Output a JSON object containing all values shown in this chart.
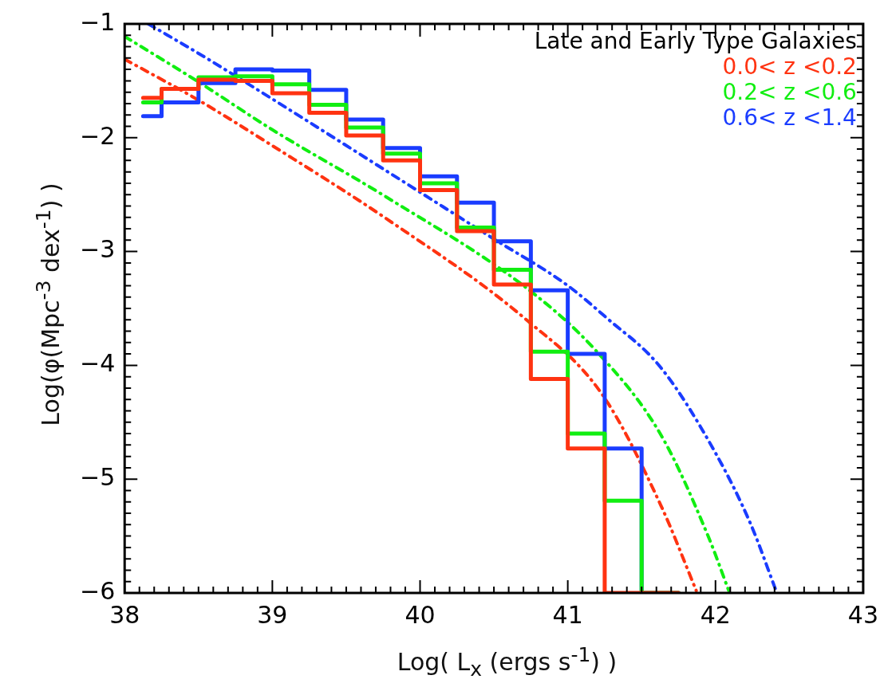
{
  "chart_data": {
    "type": "histogram",
    "xlabel": "Log( L$_{x}$ (ergs s$^{-1}$) )",
    "ylabel": "Log(φ(Mpc$^{-3}$ dex$^{-1}$) )",
    "legend_title": "Late and Early Type Galaxies",
    "legend": "top right",
    "grid": false,
    "bins": [
      38.125,
      38.25,
      38.5,
      38.75,
      39,
      39.25,
      39.5,
      39.75,
      40,
      40.25,
      40.5,
      40.75,
      41,
      41.25,
      41.5,
      41.75
    ],
    "series": [
      {
        "name": "0.0< z <0.2",
        "color": "#ff3311",
        "values": [
          -1.65,
          -1.57,
          -1.49,
          -1.5,
          -1.61,
          -1.78,
          -1.98,
          -2.2,
          -2.46,
          -2.82,
          -3.29,
          -4.12,
          -4.73,
          -6,
          -6
        ]
      },
      {
        "name": "0.2< z <0.6",
        "color": "#11ee11",
        "values": [
          -1.69,
          -1.57,
          -1.47,
          -1.46,
          -1.53,
          -1.71,
          -1.91,
          -2.14,
          -2.4,
          -2.79,
          -3.16,
          -3.88,
          -4.6,
          -5.19,
          -6
        ]
      },
      {
        "name": "0.6< z <1.4",
        "color": "#1a3cff",
        "values": [
          -1.81,
          -1.69,
          -1.52,
          -1.4,
          -1.41,
          -1.58,
          -1.84,
          -2.09,
          -2.34,
          -2.57,
          -2.91,
          -3.34,
          -3.9,
          -4.73,
          -6
        ]
      },
      {
        "type": "line",
        "line_style": "dashed",
        "color": "#ff3311",
        "x": [
          38,
          38.5,
          39,
          39.77,
          40.72,
          41.23,
          41.63,
          41.87
        ],
        "values": [
          -1.31,
          -1.67,
          -2.07,
          -2.71,
          -3.6,
          -4.25,
          -5.23,
          -5.98
        ]
      },
      {
        "type": "line",
        "line_style": "dashed",
        "color": "#11ee11",
        "x": [
          38,
          38.5,
          39,
          39.77,
          40.72,
          41.19,
          41.63,
          41.95,
          42.09
        ],
        "values": [
          -1.11,
          -1.51,
          -1.93,
          -2.52,
          -3.32,
          -3.87,
          -4.61,
          -5.5,
          -5.98
        ]
      },
      {
        "type": "line",
        "line_style": "dashed",
        "color": "#1a3cff",
        "x": [
          38.16,
          38.54,
          39,
          39.77,
          40.5,
          40.99,
          41.26,
          41.63,
          42,
          42.24,
          42.41
        ],
        "values": [
          -1,
          -1.29,
          -1.66,
          -2.29,
          -2.89,
          -3.29,
          -3.58,
          -4.02,
          -4.77,
          -5.4,
          -5.98
        ]
      }
    ],
    "xlim": [
      38,
      43
    ],
    "ylim": [
      -6,
      -1
    ],
    "xticks": [
      38,
      39,
      40,
      41,
      42,
      43
    ],
    "yticks": [
      -6,
      -5,
      -4,
      -3,
      -2,
      -1
    ]
  }
}
